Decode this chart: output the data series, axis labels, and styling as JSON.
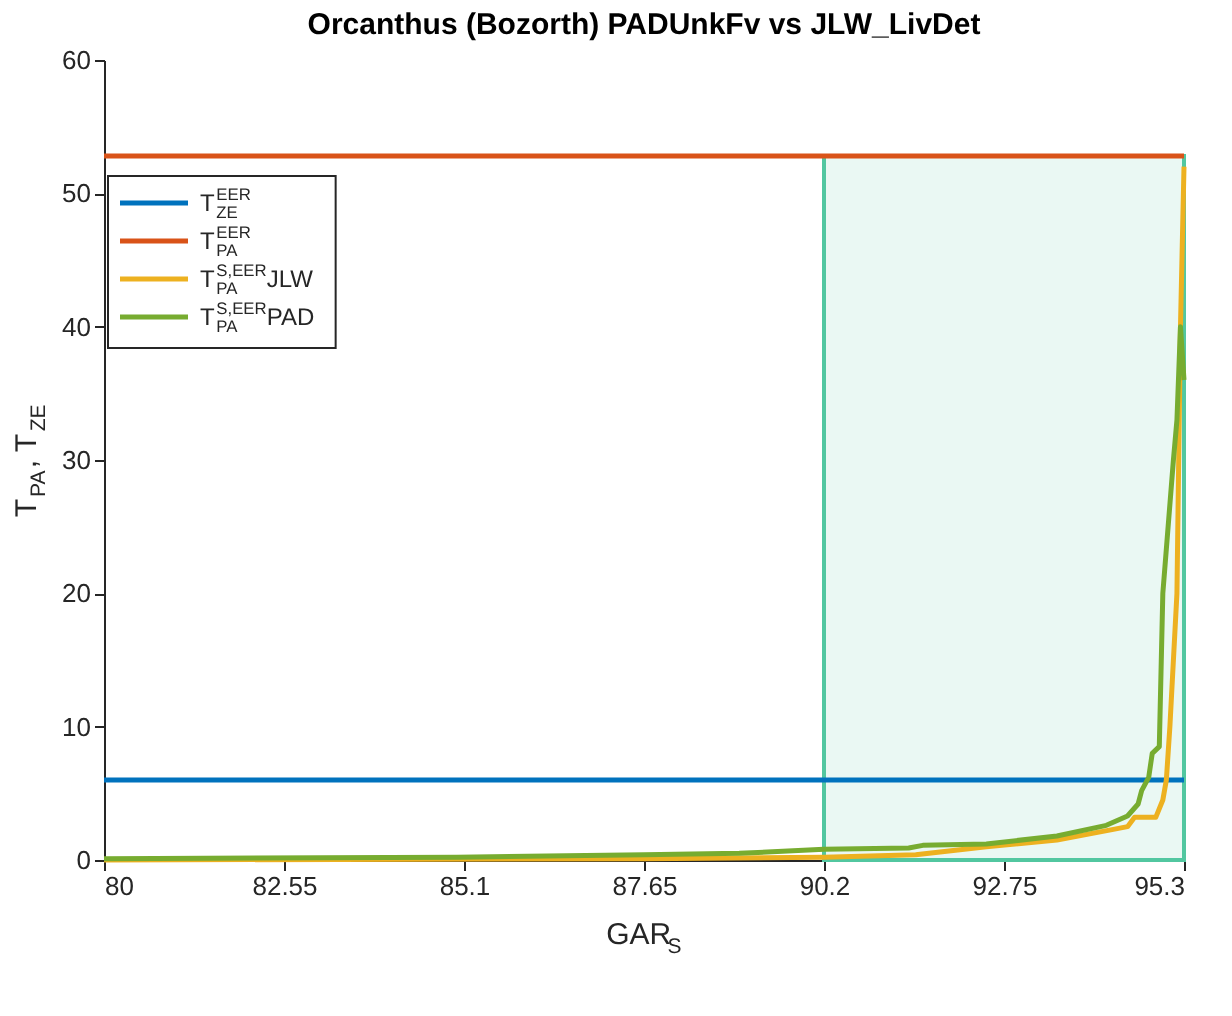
{
  "chart_data": {
    "type": "line",
    "title": "Orcanthus (Bozorth) PADUnkFv vs JLW_LivDet",
    "xlabel": "GAR$_{S}$",
    "ylabel": "T$_{PA}$, T$_{ZE}$",
    "xlim": [
      80,
      95.3
    ],
    "xticks": [
      80,
      82.55,
      85.1,
      87.65,
      90.2,
      92.75,
      95.3
    ],
    "ylim": [
      0,
      60
    ],
    "yticks": [
      0,
      10,
      20,
      30,
      40,
      50,
      60
    ],
    "grid": false,
    "legend": "top left",
    "series": [
      {
        "type": "area",
        "color": "#52c7a0",
        "x": [
          90.2,
          95.3
        ],
        "values": [
          52.8,
          52.8
        ]
      },
      {
        "name": "T$_{ZE}$$^{EER}$",
        "color": "#0072bd",
        "x": [
          80,
          95.3
        ],
        "values": [
          6,
          6
        ]
      },
      {
        "name": "T$_{PA}$$^{EER}$",
        "color": "#d95319",
        "x": [
          80,
          95.3
        ],
        "values": [
          52.8,
          52.8
        ]
      },
      {
        "name": "T$_{PA}$$^{S,EER}$JLW",
        "color": "#edb120",
        "x": [
          80,
          87.65,
          90.2,
          91.5,
          92.5,
          93.5,
          94.3,
          94.5,
          94.6,
          94.9,
          95.0,
          95.05,
          95.1,
          95.2,
          95.25,
          95.3
        ],
        "values": [
          0,
          0.1,
          0.2,
          0.4,
          1.0,
          1.5,
          2.3,
          2.5,
          3.2,
          3.2,
          4.5,
          6,
          10,
          20,
          40,
          52
        ]
      },
      {
        "name": "T$_{PA}$$^{S,EER}$PAD",
        "color": "#77ac30",
        "x": [
          80,
          85,
          87.65,
          89,
          90.2,
          91.4,
          91.6,
          92.5,
          93.5,
          94.2,
          94.5,
          94.65,
          94.7,
          94.8,
          94.85,
          94.95,
          95.0,
          95.15,
          95.2,
          95.25,
          95.3
        ],
        "values": [
          0.1,
          0.2,
          0.4,
          0.5,
          0.8,
          0.9,
          1.1,
          1.2,
          1.8,
          2.6,
          3.3,
          4.2,
          5.2,
          6.2,
          8,
          8.5,
          20,
          30,
          33,
          40,
          36
        ]
      }
    ]
  }
}
